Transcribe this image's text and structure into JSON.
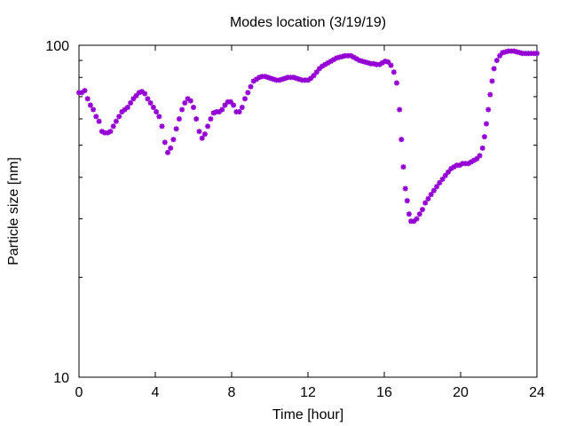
{
  "chart_data": {
    "type": "scatter",
    "title": "Modes location (3/19/19)",
    "xlabel": "Time [hour]",
    "ylabel": "Particle size [nm]",
    "xlim": [
      0,
      24
    ],
    "ylim": [
      10,
      100
    ],
    "yscale": "log",
    "xticks": [
      0,
      4,
      8,
      12,
      16,
      20,
      24
    ],
    "yticks": [
      10,
      100
    ],
    "grid": false,
    "legend": "none",
    "marker_color": "#9400d3",
    "series": [
      {
        "points": [
          [
            0.0,
            72
          ],
          [
            0.15,
            72
          ],
          [
            0.3,
            73
          ],
          [
            0.45,
            69
          ],
          [
            0.6,
            66
          ],
          [
            0.75,
            64
          ],
          [
            0.9,
            61
          ],
          [
            1.05,
            59
          ],
          [
            1.2,
            55
          ],
          [
            1.35,
            54.5
          ],
          [
            1.5,
            54.5
          ],
          [
            1.65,
            55
          ],
          [
            1.8,
            57
          ],
          [
            1.95,
            59
          ],
          [
            2.1,
            61
          ],
          [
            2.25,
            63
          ],
          [
            2.4,
            64
          ],
          [
            2.55,
            65
          ],
          [
            2.7,
            67
          ],
          [
            2.85,
            69
          ],
          [
            3.0,
            70.5
          ],
          [
            3.15,
            72
          ],
          [
            3.3,
            72.5
          ],
          [
            3.45,
            71.5
          ],
          [
            3.6,
            69
          ],
          [
            3.75,
            67
          ],
          [
            3.9,
            65
          ],
          [
            4.05,
            63
          ],
          [
            4.2,
            61
          ],
          [
            4.35,
            57
          ],
          [
            4.5,
            51
          ],
          [
            4.65,
            47.5
          ],
          [
            4.8,
            49
          ],
          [
            4.95,
            52
          ],
          [
            5.1,
            56
          ],
          [
            5.25,
            60
          ],
          [
            5.4,
            64
          ],
          [
            5.55,
            67
          ],
          [
            5.7,
            69
          ],
          [
            5.85,
            68
          ],
          [
            6.0,
            65
          ],
          [
            6.15,
            60
          ],
          [
            6.3,
            55
          ],
          [
            6.45,
            52.5
          ],
          [
            6.6,
            54
          ],
          [
            6.75,
            57
          ],
          [
            6.9,
            60
          ],
          [
            7.05,
            62.5
          ],
          [
            7.2,
            63
          ],
          [
            7.35,
            63
          ],
          [
            7.5,
            64
          ],
          [
            7.65,
            66
          ],
          [
            7.8,
            67.5
          ],
          [
            7.95,
            67.5
          ],
          [
            8.1,
            66
          ],
          [
            8.25,
            63
          ],
          [
            8.4,
            63
          ],
          [
            8.55,
            65
          ],
          [
            8.7,
            69
          ],
          [
            8.85,
            72
          ],
          [
            9.0,
            75
          ],
          [
            9.15,
            78
          ],
          [
            9.3,
            79
          ],
          [
            9.45,
            80
          ],
          [
            9.6,
            80.5
          ],
          [
            9.75,
            80.5
          ],
          [
            9.9,
            80
          ],
          [
            10.05,
            79.5
          ],
          [
            10.2,
            79
          ],
          [
            10.35,
            78.5
          ],
          [
            10.5,
            78.5
          ],
          [
            10.65,
            79
          ],
          [
            10.8,
            79.5
          ],
          [
            10.95,
            80
          ],
          [
            11.1,
            80
          ],
          [
            11.25,
            80
          ],
          [
            11.4,
            79.5
          ],
          [
            11.55,
            79
          ],
          [
            11.7,
            78.5
          ],
          [
            11.85,
            78.5
          ],
          [
            12.0,
            78.5
          ],
          [
            12.15,
            79.5
          ],
          [
            12.3,
            81
          ],
          [
            12.45,
            83
          ],
          [
            12.6,
            85
          ],
          [
            12.75,
            86.5
          ],
          [
            12.9,
            87.5
          ],
          [
            13.05,
            88.5
          ],
          [
            13.2,
            89.5
          ],
          [
            13.35,
            90.5
          ],
          [
            13.5,
            91.5
          ],
          [
            13.65,
            92
          ],
          [
            13.8,
            92.5
          ],
          [
            13.95,
            93
          ],
          [
            14.1,
            93
          ],
          [
            14.25,
            93
          ],
          [
            14.4,
            92
          ],
          [
            14.55,
            91
          ],
          [
            14.7,
            90
          ],
          [
            14.85,
            89.5
          ],
          [
            15.0,
            89
          ],
          [
            15.15,
            88.5
          ],
          [
            15.3,
            88
          ],
          [
            15.45,
            88
          ],
          [
            15.6,
            87.5
          ],
          [
            15.75,
            87.5
          ],
          [
            15.9,
            88.5
          ],
          [
            16.05,
            89.5
          ],
          [
            16.2,
            89
          ],
          [
            16.35,
            87
          ],
          [
            16.5,
            83
          ],
          [
            16.65,
            77
          ],
          [
            16.8,
            64
          ],
          [
            16.9,
            52
          ],
          [
            17.0,
            43
          ],
          [
            17.1,
            37
          ],
          [
            17.2,
            34
          ],
          [
            17.3,
            31
          ],
          [
            17.4,
            29.5
          ],
          [
            17.55,
            29.5
          ],
          [
            17.7,
            30
          ],
          [
            17.85,
            31
          ],
          [
            18.0,
            32
          ],
          [
            18.15,
            33.5
          ],
          [
            18.3,
            34.5
          ],
          [
            18.45,
            35.5
          ],
          [
            18.6,
            36.5
          ],
          [
            18.75,
            37.5
          ],
          [
            18.9,
            38.5
          ],
          [
            19.05,
            39.5
          ],
          [
            19.2,
            40.5
          ],
          [
            19.35,
            41.5
          ],
          [
            19.5,
            42.5
          ],
          [
            19.65,
            43
          ],
          [
            19.8,
            43.5
          ],
          [
            19.95,
            43.5
          ],
          [
            20.1,
            44
          ],
          [
            20.25,
            44
          ],
          [
            20.4,
            44
          ],
          [
            20.55,
            44.5
          ],
          [
            20.7,
            45
          ],
          [
            20.85,
            45.5
          ],
          [
            21.0,
            46.5
          ],
          [
            21.15,
            49
          ],
          [
            21.25,
            53
          ],
          [
            21.35,
            58
          ],
          [
            21.45,
            64
          ],
          [
            21.55,
            71
          ],
          [
            21.65,
            78
          ],
          [
            21.75,
            85
          ],
          [
            21.9,
            90
          ],
          [
            22.05,
            93
          ],
          [
            22.2,
            95
          ],
          [
            22.35,
            95.5
          ],
          [
            22.5,
            96
          ],
          [
            22.65,
            96
          ],
          [
            22.8,
            96
          ],
          [
            22.95,
            95.5
          ],
          [
            23.1,
            95
          ],
          [
            23.25,
            94.5
          ],
          [
            23.4,
            94.5
          ],
          [
            23.55,
            94.5
          ],
          [
            23.7,
            94.5
          ],
          [
            23.85,
            94.5
          ],
          [
            24.0,
            94.5
          ]
        ]
      }
    ]
  }
}
